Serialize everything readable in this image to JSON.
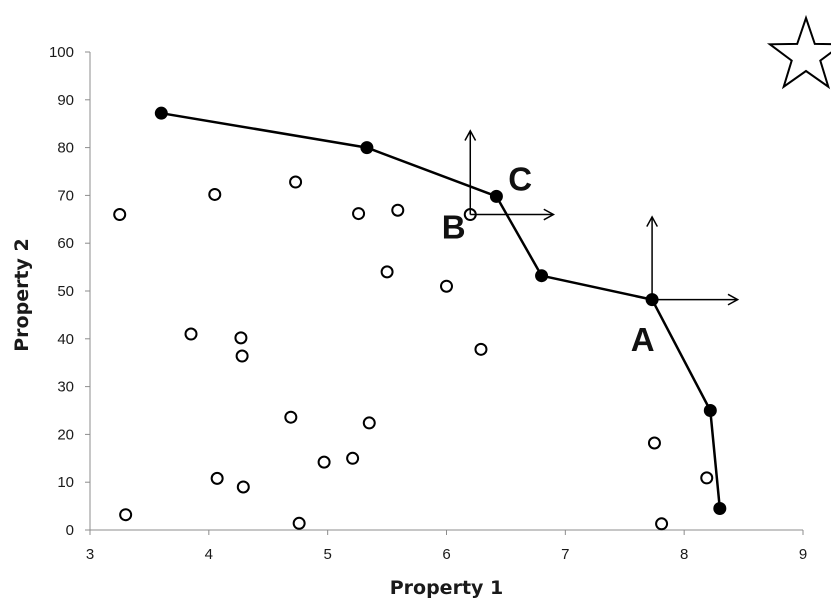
{
  "chart_data": {
    "type": "scatter",
    "title": "",
    "xlabel": "Property 1",
    "ylabel": "Property 2",
    "xlim": [
      3,
      9
    ],
    "ylim": [
      0,
      100
    ],
    "xticks": [
      "3",
      "4",
      "5",
      "6",
      "7",
      "8",
      "9"
    ],
    "yticks": [
      "0",
      "10",
      "20",
      "30",
      "40",
      "50",
      "60",
      "70",
      "80",
      "90",
      "100"
    ],
    "grid": false,
    "legend": "none",
    "series": [
      {
        "style": "open-circles",
        "points": [
          {
            "x": 3.25,
            "y": 66
          },
          {
            "x": 3.3,
            "y": 3.2
          },
          {
            "x": 3.85,
            "y": 41
          },
          {
            "x": 4.05,
            "y": 70.2
          },
          {
            "x": 4.07,
            "y": 10.8
          },
          {
            "x": 4.27,
            "y": 40.2
          },
          {
            "x": 4.28,
            "y": 36.4
          },
          {
            "x": 4.29,
            "y": 9
          },
          {
            "x": 4.69,
            "y": 23.6
          },
          {
            "x": 4.73,
            "y": 72.8
          },
          {
            "x": 4.76,
            "y": 1.4
          },
          {
            "x": 4.97,
            "y": 14.2
          },
          {
            "x": 5.21,
            "y": 15
          },
          {
            "x": 5.26,
            "y": 66.2
          },
          {
            "x": 5.35,
            "y": 22.4
          },
          {
            "x": 5.5,
            "y": 54
          },
          {
            "x": 5.59,
            "y": 66.9
          },
          {
            "x": 6.0,
            "y": 51
          },
          {
            "x": 6.2,
            "y": 66
          },
          {
            "x": 6.29,
            "y": 37.8
          },
          {
            "x": 7.75,
            "y": 18.2
          },
          {
            "x": 7.81,
            "y": 1.3
          },
          {
            "x": 8.19,
            "y": 10.9
          }
        ]
      },
      {
        "style": "filled-circles-connected",
        "points": [
          {
            "x": 3.6,
            "y": 87.2
          },
          {
            "x": 5.33,
            "y": 80
          },
          {
            "x": 6.42,
            "y": 69.8
          },
          {
            "x": 6.8,
            "y": 53.2
          },
          {
            "x": 7.73,
            "y": 48.2
          },
          {
            "x": 8.22,
            "y": 25
          },
          {
            "x": 8.3,
            "y": 4.5
          }
        ]
      }
    ],
    "annotations": [
      {
        "text": "A",
        "x": 7.55,
        "y": 40
      },
      {
        "text": "B",
        "x": 5.96,
        "y": 63.5
      },
      {
        "text": "C",
        "x": 6.52,
        "y": 73.5
      }
    ],
    "arrows": [
      {
        "name": "arrow-a-up",
        "from": [
          7.73,
          48.2
        ],
        "to": [
          7.73,
          65.5
        ]
      },
      {
        "name": "arrow-a-right",
        "from": [
          7.73,
          48.2
        ],
        "to": [
          8.45,
          48.2
        ]
      },
      {
        "name": "arrow-b-up",
        "from": [
          6.2,
          66
        ],
        "to": [
          6.2,
          83.5
        ]
      },
      {
        "name": "arrow-b-right",
        "from": [
          6.2,
          66
        ],
        "to": [
          6.9,
          66
        ]
      }
    ],
    "marker": {
      "icon": "star-icon"
    }
  }
}
